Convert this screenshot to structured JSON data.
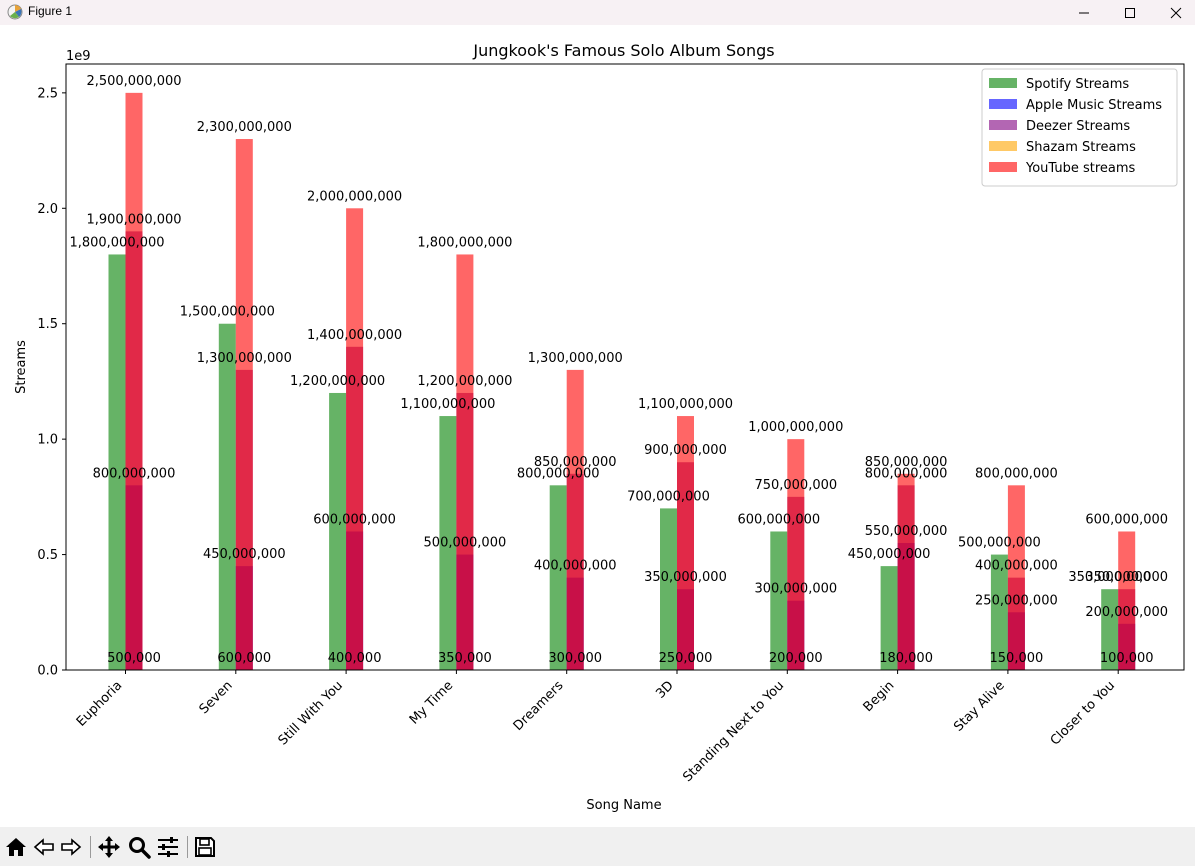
{
  "window": {
    "title": "Figure 1",
    "icons": [
      "app-icon",
      "minimize-icon",
      "maximize-icon",
      "close-icon"
    ]
  },
  "toolbar": {
    "icons": [
      "home-icon",
      "back-icon",
      "forward-icon",
      "pan-icon",
      "zoom-icon",
      "configure-subplots-icon",
      "save-icon"
    ]
  },
  "colors": {
    "spotify": "#008000",
    "apple": "#0000ff",
    "deezer": "#800080",
    "shazam": "#ffa500",
    "youtube": "#ff0000"
  },
  "chart_data": {
    "type": "bar",
    "title": "Jungkook's Famous Solo Album Songs",
    "xlabel": "Song Name",
    "ylabel": "Streams",
    "y_offset_label": "1e9",
    "ylim": [
      0,
      2625000000
    ],
    "yticks": [
      0,
      500000000,
      1000000000,
      1500000000,
      2000000000,
      2500000000
    ],
    "ytick_labels": [
      "0.0",
      "0.5",
      "1.0",
      "1.5",
      "2.0",
      "2.5"
    ],
    "legend_position": "top-right",
    "bar_alpha": 0.6,
    "categories": [
      "Euphoria",
      "Seven",
      "Still With You",
      "My Time",
      "Dreamers",
      "3D",
      "Standing Next to You",
      "Begin",
      "Stay Alive",
      "Closer to You"
    ],
    "series": [
      {
        "name": "Spotify Streams",
        "color": "#008000",
        "values": [
          1800000000,
          1500000000,
          1200000000,
          1100000000,
          800000000,
          700000000,
          600000000,
          450000000,
          500000000,
          350000000
        ],
        "labels": [
          "1,800,000,000",
          "1,500,000,000",
          "1,200,000,000",
          "1,100,000,000",
          "800,000,000",
          "700,000,000",
          "600,000,000",
          "450,000,000",
          "500,000,000",
          "350,000,000"
        ]
      },
      {
        "name": "Apple Music Streams",
        "color": "#0000ff",
        "values": [
          800000000,
          450000000,
          600000000,
          500000000,
          400000000,
          350000000,
          300000000,
          550000000,
          250000000,
          200000000
        ],
        "labels": [
          "800,000,000",
          "450,000,000",
          "600,000,000",
          "500,000,000",
          "400,000,000",
          "350,000,000",
          "300,000,000",
          "550,000,000",
          "250,000,000",
          "200,000,000"
        ]
      },
      {
        "name": "Deezer Streams",
        "color": "#800080",
        "values": [
          1900000000,
          1300000000,
          1400000000,
          1200000000,
          850000000,
          900000000,
          750000000,
          800000000,
          400000000,
          350000000
        ],
        "labels": [
          "1,900,000,000",
          "1,300,000,000",
          "1,400,000,000",
          "1,200,000,000",
          "850,000,000",
          "900,000,000",
          "750,000,000",
          "800,000,000",
          "400,000,000",
          "350,000,000"
        ]
      },
      {
        "name": "Shazam Streams",
        "color": "#ffa500",
        "values": [
          500000,
          600000,
          400000,
          350000,
          300000,
          250000,
          200000,
          180000,
          150000,
          100000
        ],
        "labels": [
          "500,000",
          "600,000",
          "400,000",
          "350,000",
          "300,000",
          "250,000",
          "200,000",
          "180,000",
          "150,000",
          "100,000"
        ]
      },
      {
        "name": "YouTube streams",
        "color": "#ff0000",
        "values": [
          2500000000,
          2300000000,
          2000000000,
          1800000000,
          1300000000,
          1100000000,
          1000000000,
          850000000,
          800000000,
          600000000
        ],
        "labels": [
          "2,500,000,000",
          "2,300,000,000",
          "2,000,000,000",
          "1,800,000,000",
          "1,300,000,000",
          "1,100,000,000",
          "1,000,000,000",
          "850,000,000",
          "800,000,000",
          "600,000,000"
        ]
      }
    ]
  }
}
